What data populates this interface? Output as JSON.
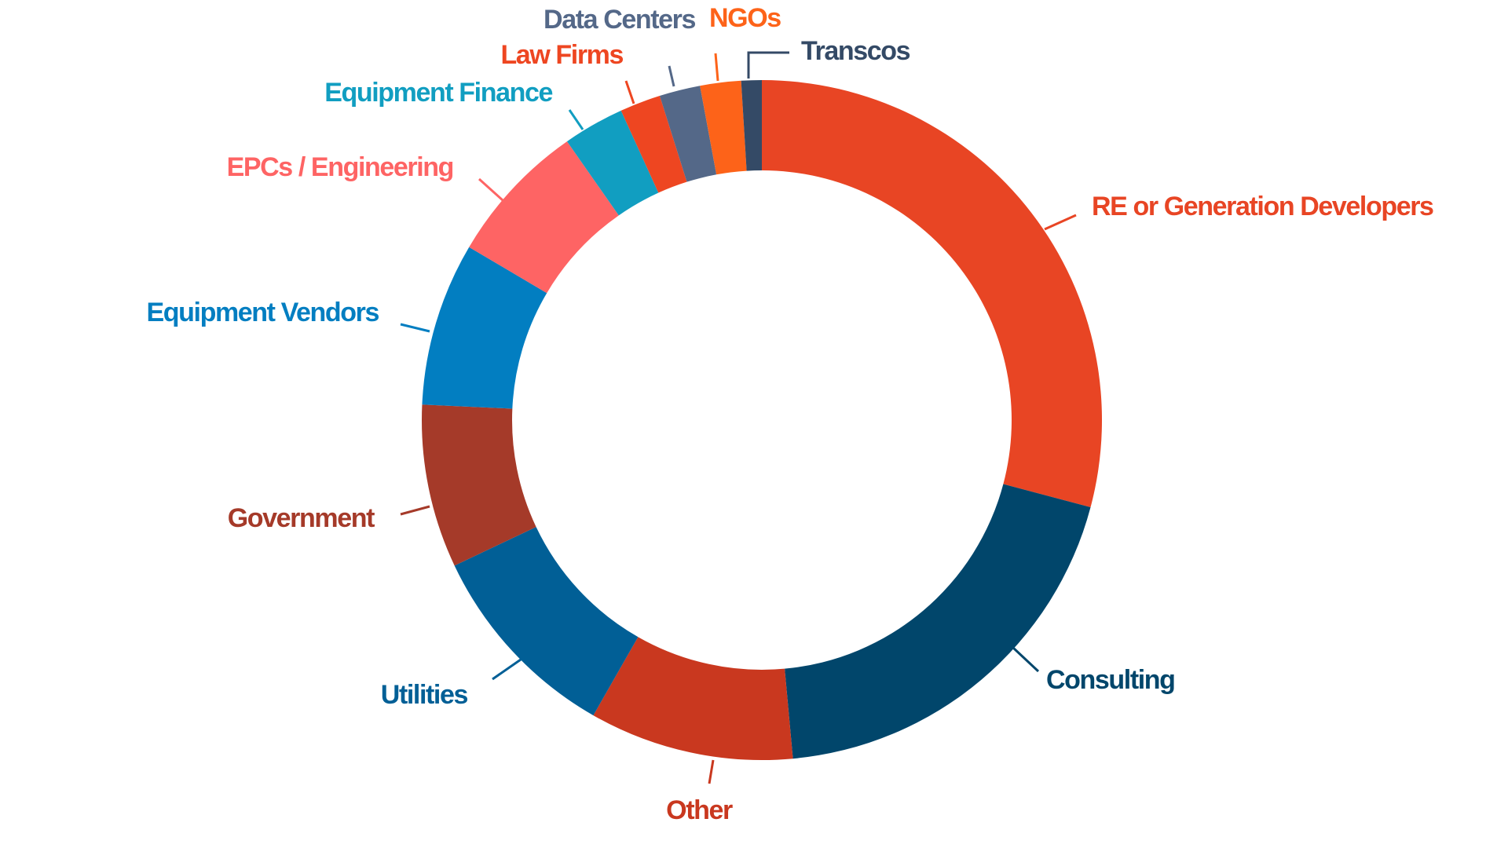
{
  "chart_data": {
    "type": "pie",
    "variant": "donut",
    "title": "",
    "legend": "none",
    "label_placement": "outside with leader lines",
    "series": [
      {
        "name": "",
        "values": [
          30,
          20,
          10,
          10,
          8,
          8,
          7,
          3,
          2,
          2,
          2,
          1
        ]
      }
    ],
    "slices": [
      {
        "label": "RE or Generation Developers",
        "value": 30,
        "color": "#E84524"
      },
      {
        "label": "Consulting",
        "value": 20,
        "color": "#01466B"
      },
      {
        "label": "Other",
        "value": 10,
        "color": "#C9381F"
      },
      {
        "label": "Utilities",
        "value": 10,
        "color": "#015F96"
      },
      {
        "label": "Government",
        "value": 8,
        "color": "#A53A29"
      },
      {
        "label": "Equipment Vendors",
        "value": 8,
        "color": "#027EC1"
      },
      {
        "label": "EPCs / Engineering",
        "value": 7,
        "color": "#FE6464"
      },
      {
        "label": "Equipment Finance",
        "value": 3,
        "color": "#119EC1"
      },
      {
        "label": "Law Firms",
        "value": 2,
        "color": "#EE4621"
      },
      {
        "label": "Data Centers",
        "value": 2,
        "color": "#546888"
      },
      {
        "label": "NGOs",
        "value": 2,
        "color": "#FD6319"
      },
      {
        "label": "Transcos",
        "value": 1,
        "color": "#344A66"
      }
    ]
  }
}
